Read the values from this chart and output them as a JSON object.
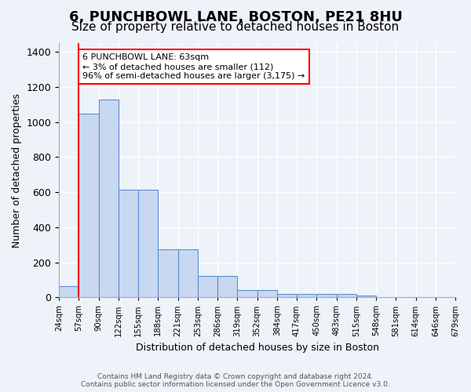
{
  "title": "6, PUNCHBOWL LANE, BOSTON, PE21 8HU",
  "subtitle": "Size of property relative to detached houses in Boston",
  "xlabel": "Distribution of detached houses by size in Boston",
  "ylabel": "Number of detached properties",
  "bin_labels": [
    "24sqm",
    "57sqm",
    "90sqm",
    "122sqm",
    "155sqm",
    "188sqm",
    "221sqm",
    "253sqm",
    "286sqm",
    "319sqm",
    "352sqm",
    "384sqm",
    "417sqm",
    "450sqm",
    "483sqm",
    "515sqm",
    "548sqm",
    "581sqm",
    "614sqm",
    "646sqm",
    "679sqm"
  ],
  "bar_heights": [
    63,
    1046,
    1130,
    615,
    615,
    275,
    275,
    120,
    120,
    40,
    40,
    20,
    20,
    20,
    20,
    10,
    0,
    0,
    0,
    0
  ],
  "bar_color": "#c8d8f0",
  "bar_edge_color": "#5b8fd4",
  "red_line_x": 1.0,
  "annotation_text": "6 PUNCHBOWL LANE: 63sqm\n← 3% of detached houses are smaller (112)\n96% of semi-detached houses are larger (3,175) →",
  "annotation_box_color": "white",
  "annotation_box_edge_color": "red",
  "ylim": [
    0,
    1450
  ],
  "yticks": [
    0,
    200,
    400,
    600,
    800,
    1000,
    1200,
    1400
  ],
  "bg_color": "#eef2f9",
  "plot_bg_color": "#eef2f9",
  "grid_color": "white",
  "title_fontsize": 13,
  "subtitle_fontsize": 11,
  "footer_text": "Contains HM Land Registry data © Crown copyright and database right 2024.\nContains public sector information licensed under the Open Government Licence v3.0."
}
